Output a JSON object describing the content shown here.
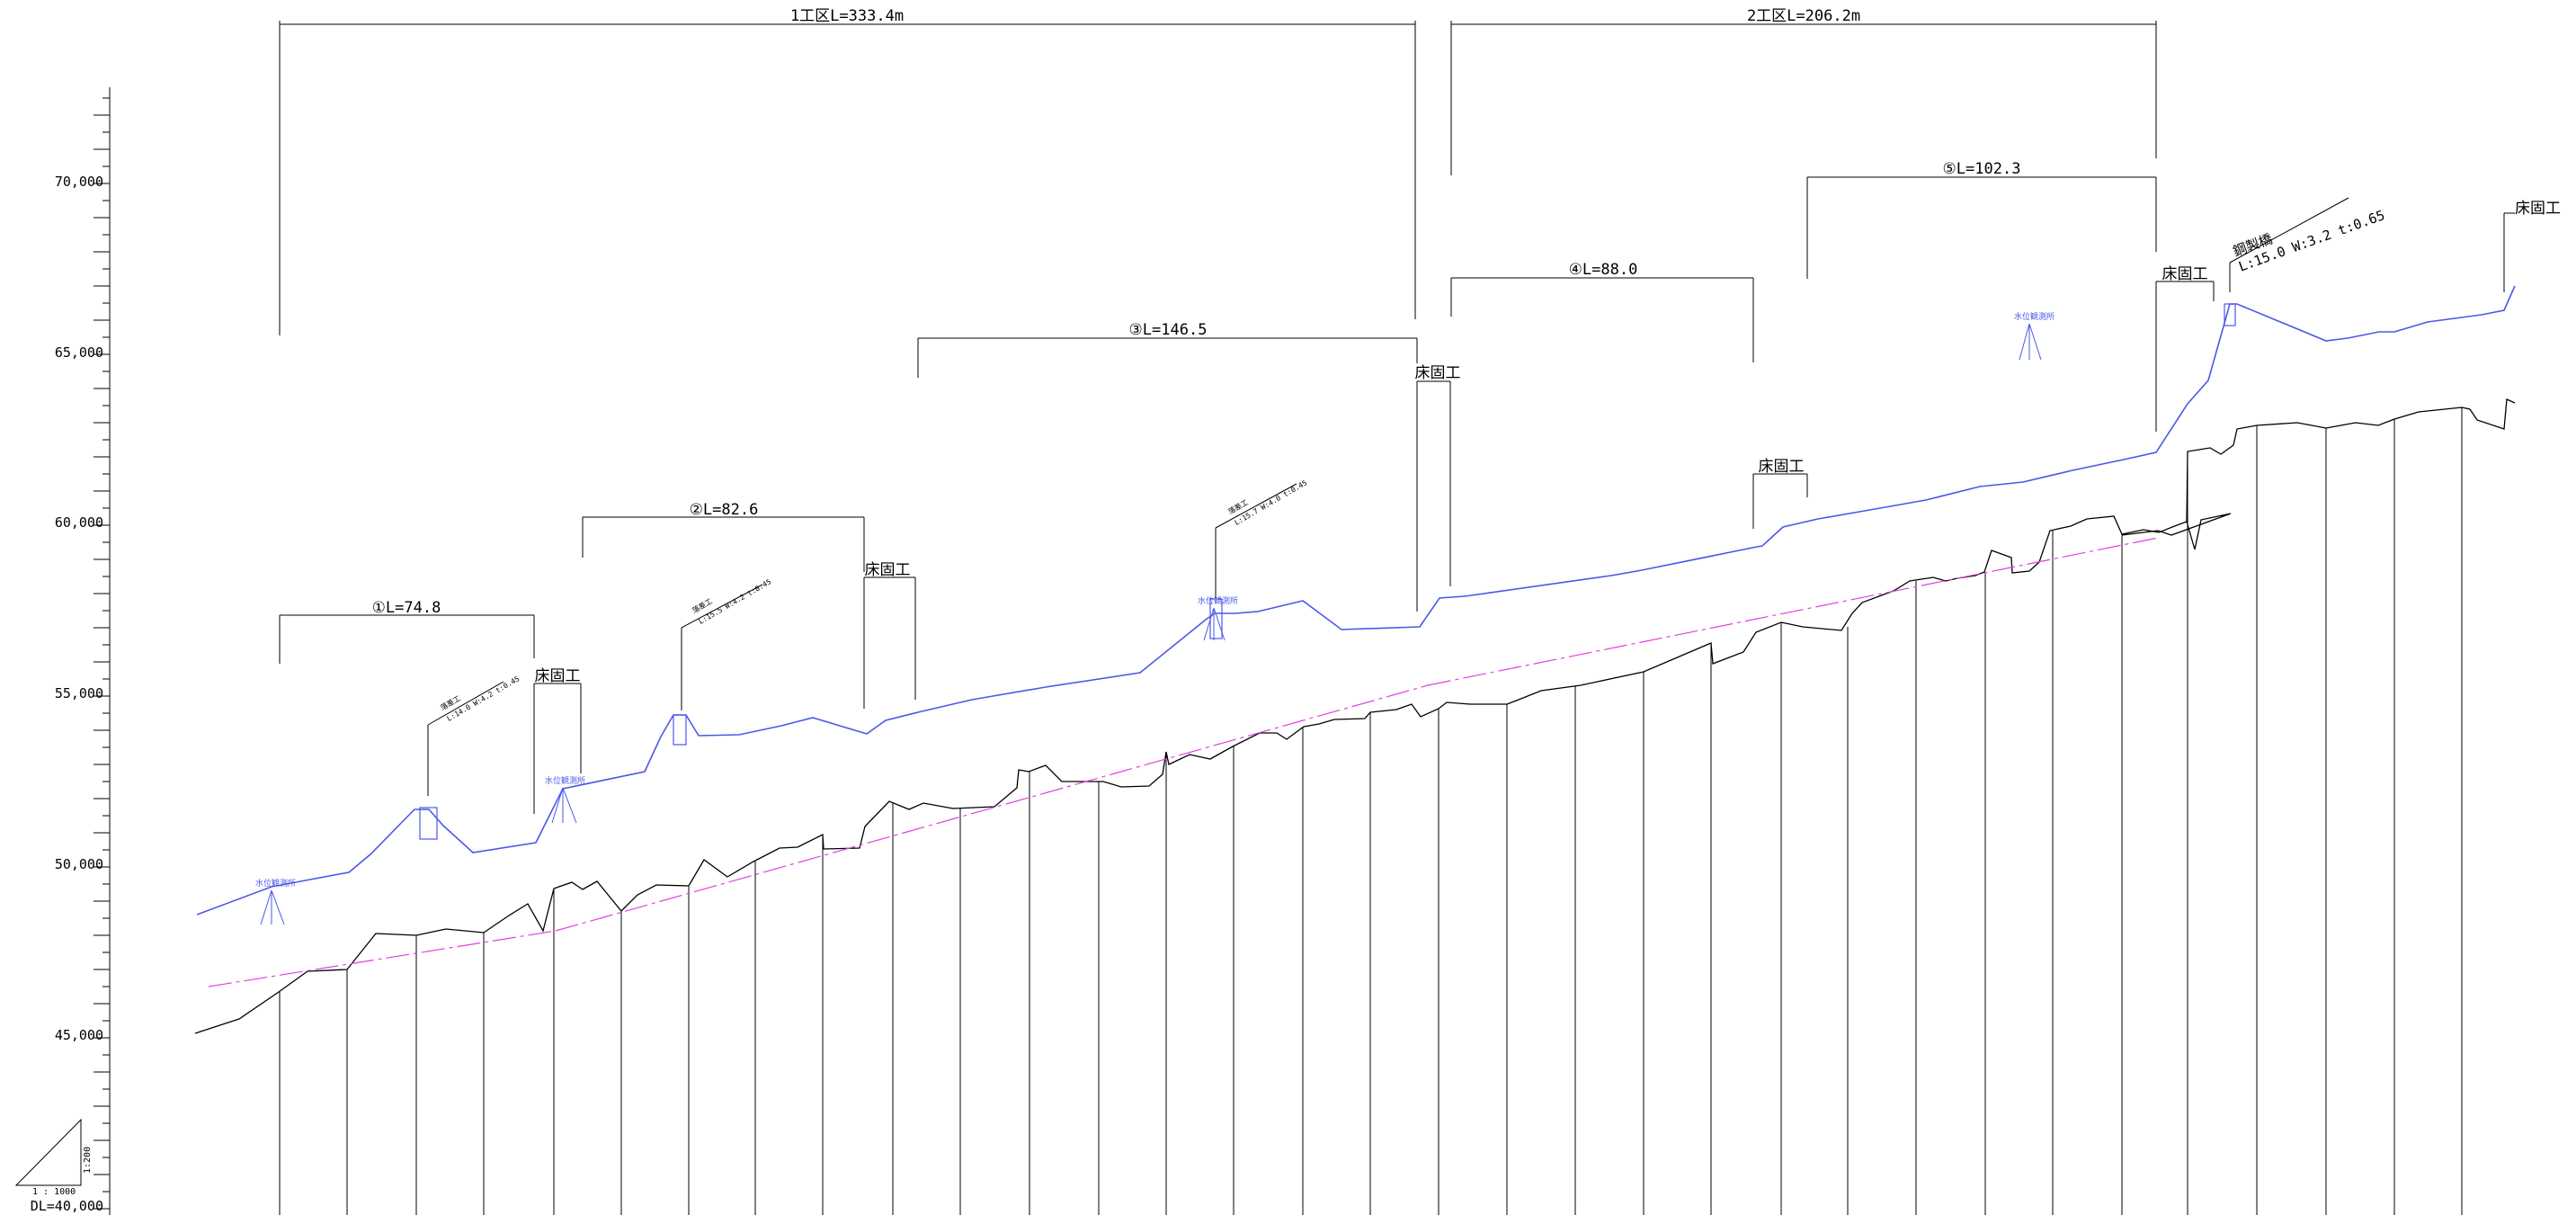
{
  "scale": {
    "ratio": "1 : 1000",
    "vertical": "1:200",
    "datum": "DL=40,000"
  },
  "elevation_axis": {
    "labels": [
      "70,000",
      "65,000",
      "60,000",
      "55,000",
      "50,000",
      "45,000"
    ],
    "values": [
      70,
      65,
      60,
      55,
      50,
      45
    ]
  },
  "work_zones": [
    {
      "label": "1工区L=333.4m"
    },
    {
      "label": "2工区L=206.2m"
    }
  ],
  "sections": [
    {
      "label": "①L=74.8"
    },
    {
      "label": "②L=82.6"
    },
    {
      "label": "③L=146.5"
    },
    {
      "label": "④L=88.0"
    },
    {
      "label": "⑤L=102.3"
    }
  ],
  "bed_works": {
    "label": "床固工"
  },
  "drop_structures": [
    {
      "label": "落差工",
      "spec": "L:14.0 W:4.2 t:0.45"
    },
    {
      "label": "落差工",
      "spec": "L:15.5 W:4.2 t:0.45"
    },
    {
      "label": "落差工",
      "spec": "L:15.7 W:4.0 t:0.45"
    }
  ],
  "bridge": {
    "label": "鋼製橋",
    "spec": "L:15.0 W:3.2 t:0.65"
  },
  "river_gauge": {
    "label": "水位観測所"
  },
  "colors": {
    "design_line": "#4a58e8",
    "grade_line": "#e040e0",
    "ground": "#000000"
  }
}
